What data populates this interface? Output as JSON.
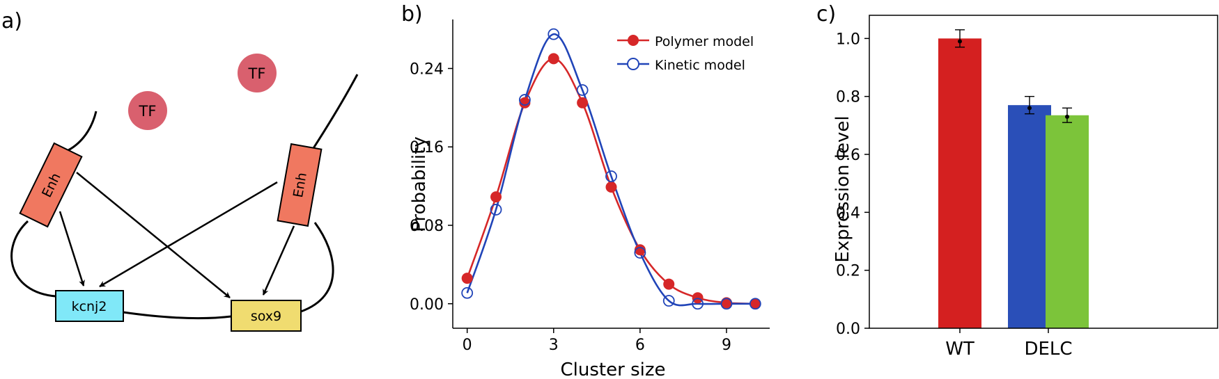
{
  "colors": {
    "polymer": "#d62728",
    "kinetic": "#2044b8",
    "enh_fill": "#f07860",
    "tf_fill": "#d9606e",
    "kcnj2_fill": "#80e8f8",
    "sox9_fill": "#f0dc70",
    "wt_bar": "#d42020",
    "delc_bar1": "#2a4fb8",
    "delc_bar2": "#7cc43a"
  },
  "panels": {
    "a": "a)",
    "b": "b)",
    "c": "c)"
  },
  "diagram": {
    "tf_1": "TF",
    "tf_2": "TF",
    "enh_left": "Enh",
    "enh_right": "Enh",
    "gene_1": "kcnj2",
    "gene_2": "sox9"
  },
  "chart_data": [
    {
      "type": "line",
      "title": "",
      "xlabel": "Cluster size",
      "ylabel": "Probability",
      "xlim": [
        -0.5,
        10.5
      ],
      "ylim": [
        -0.025,
        0.29
      ],
      "xticks": [
        0,
        3,
        6,
        9
      ],
      "xtick_labels": [
        "0",
        "3",
        "6",
        "9"
      ],
      "yticks": [
        0.0,
        0.08,
        0.16,
        0.24
      ],
      "ytick_labels": [
        "0.00",
        "0.08",
        "0.16",
        "0.24"
      ],
      "legend_position": "top-right",
      "series": [
        {
          "name": "Polymer model",
          "marker": "filled-circle",
          "x": [
            0,
            1,
            2,
            3,
            4,
            5,
            6,
            7,
            8,
            9,
            10
          ],
          "values": [
            0.026,
            0.109,
            0.205,
            0.25,
            0.205,
            0.119,
            0.055,
            0.02,
            0.006,
            0.001,
            0.0
          ]
        },
        {
          "name": "Kinetic model",
          "marker": "open-circle",
          "x": [
            0,
            1,
            2,
            3,
            4,
            5,
            6,
            7,
            8,
            9,
            10
          ],
          "values": [
            0.011,
            0.096,
            0.208,
            0.275,
            0.218,
            0.13,
            0.052,
            0.003,
            0.0,
            0.0,
            0.0
          ]
        }
      ]
    },
    {
      "type": "bar",
      "title": "",
      "xlabel": "",
      "ylabel": "Expression level",
      "categories": [
        "WT",
        "DELC"
      ],
      "ylim": [
        0.0,
        1.08
      ],
      "yticks": [
        0.0,
        0.2,
        0.4,
        0.6,
        0.8,
        1.0
      ],
      "ytick_labels": [
        "0.0",
        "0.2",
        "0.4",
        "0.6",
        "0.8",
        "1.0"
      ],
      "bars": [
        {
          "category": "WT",
          "value": 1.0,
          "error": 0.03,
          "point": 0.99
        },
        {
          "category": "DELC",
          "value": 0.77,
          "error": 0.03,
          "point": 0.76
        },
        {
          "category": "DELC",
          "value": 0.735,
          "error": 0.025,
          "point": 0.73
        }
      ]
    }
  ]
}
